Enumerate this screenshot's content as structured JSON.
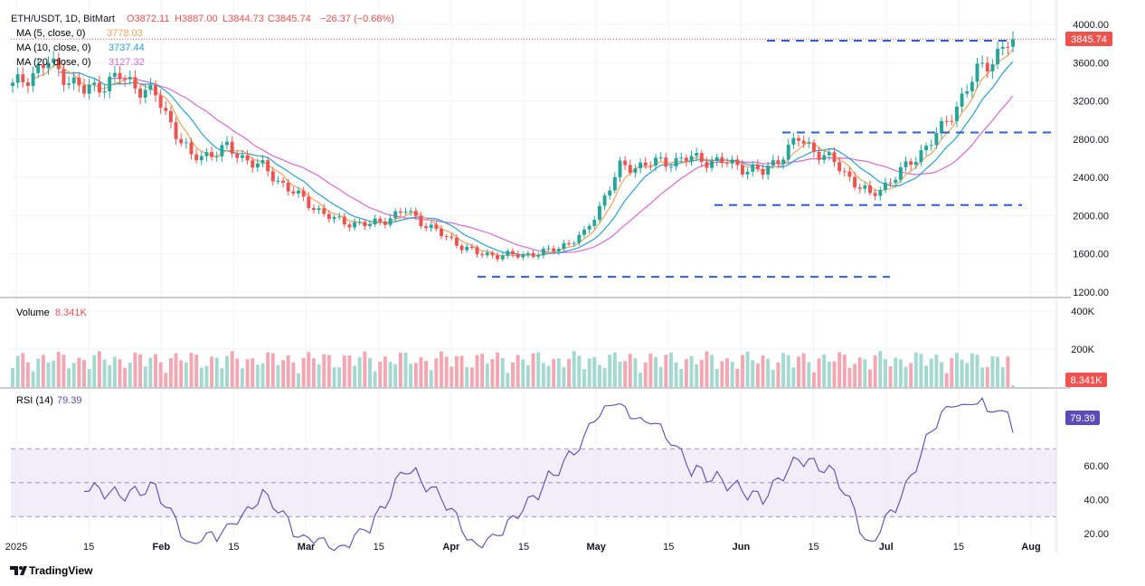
{
  "header": {
    "symbol_line": "ETH/USDT, 1D, BitMart",
    "o": "O3872.11",
    "h": "H3887.00",
    "l": "L3844.73",
    "c": "C3845.74",
    "change": "−26.37 (−0.68%)",
    "ma5_label": "MA (5, close, 0)",
    "ma5_value": "3778.03",
    "ma10_label": "MA (10, close, 0)",
    "ma10_value": "3737.44",
    "ma20_label": "MA (20, close, 0)",
    "ma20_value": "3127.32"
  },
  "volume_panel": {
    "label": "Volume",
    "value": "8.341K"
  },
  "rsi_panel": {
    "label": "RSI (14)",
    "value": "79.39"
  },
  "price_badge": "3845.74",
  "volume_badge": "8.341K",
  "rsi_badge": "79.39",
  "brand": "TradingView",
  "colors": {
    "up": "#26a69a",
    "down": "#ef5350",
    "ma5": "#f7a35c",
    "ma10": "#2aa0d8",
    "ma20": "#d96ad8",
    "rsi": "#5b4bb7",
    "dash": "#2f5fd6"
  },
  "chart_data": [
    {
      "type": "candlestick",
      "title": "ETH/USDT, 1D, BitMart",
      "x_ticks": [
        "2025",
        "15",
        "Feb",
        "15",
        "Mar",
        "15",
        "Apr",
        "15",
        "May",
        "15",
        "Jun",
        "15",
        "Jul",
        "15",
        "Aug"
      ],
      "y_ticks": [
        "4000.00",
        "3600.00",
        "3200.00",
        "2800.00",
        "2400.00",
        "2000.00",
        "1600.00",
        "1200.00"
      ],
      "ylim": [
        1200,
        4000
      ],
      "last_ohlc": {
        "open": 3872.11,
        "high": 3887.0,
        "low": 3844.73,
        "close": 3845.74
      },
      "closes_weekly": [
        3350,
        3600,
        3300,
        3450,
        3250,
        2600,
        2700,
        2500,
        2200,
        1950,
        1900,
        2050,
        1800,
        1600,
        1580,
        1620,
        1800,
        2500,
        2550,
        2600,
        2550,
        2450,
        2800,
        2550,
        2200,
        2500,
        2900,
        3500,
        3850
      ],
      "ma20_weekly": [
        3550,
        3450,
        3350,
        3200,
        3000,
        2850,
        2600,
        2350,
        2150,
        1950,
        1800,
        1750,
        1700,
        1700,
        1780,
        2000,
        2250,
        2450,
        2500,
        2550,
        2500,
        2450,
        2400,
        2500,
        2600,
        2900,
        3127
      ],
      "support_resistance_lines": [
        3830,
        2870,
        2110,
        1360
      ]
    },
    {
      "type": "bar",
      "title": "Volume",
      "y_ticks": [
        "400K",
        "200K"
      ],
      "ylim": [
        0,
        400000
      ],
      "last_value": "8.341K"
    },
    {
      "type": "line",
      "title": "RSI (14)",
      "y_ticks": [
        "60.00",
        "40.00",
        "20.00"
      ],
      "ylim": [
        20,
        100
      ],
      "band": [
        30,
        70
      ],
      "last_value": 79.39
    }
  ]
}
